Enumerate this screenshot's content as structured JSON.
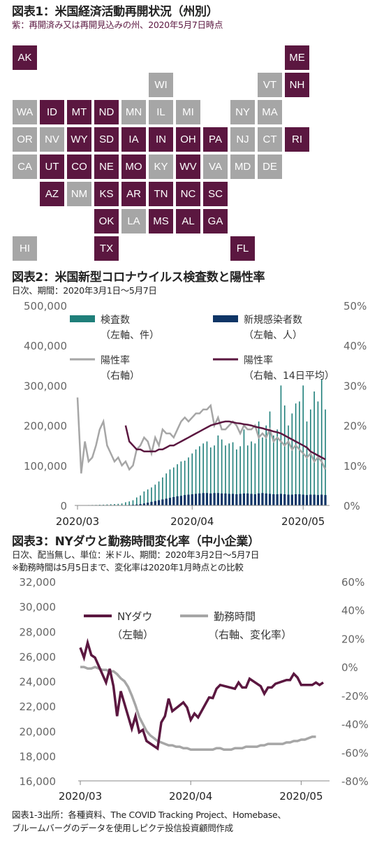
{
  "fig1": {
    "title": "図表1：米国経済活動再開状況（州別）",
    "subtitle": "紫：再開済み又は再開見込みの州、2020年5月7日時点",
    "colors": {
      "open": "#5b1740",
      "closed": "#a6a6a6"
    },
    "states": [
      {
        "code": "AK",
        "row": 0,
        "col": 0,
        "status": "open"
      },
      {
        "code": "ME",
        "row": 0,
        "col": 10,
        "status": "open"
      },
      {
        "code": "WI",
        "row": 1,
        "col": 5,
        "status": "closed"
      },
      {
        "code": "VT",
        "row": 1,
        "col": 9,
        "status": "closed"
      },
      {
        "code": "NH",
        "row": 1,
        "col": 10,
        "status": "open"
      },
      {
        "code": "WA",
        "row": 2,
        "col": 0,
        "status": "closed"
      },
      {
        "code": "ID",
        "row": 2,
        "col": 1,
        "status": "open"
      },
      {
        "code": "MT",
        "row": 2,
        "col": 2,
        "status": "open"
      },
      {
        "code": "ND",
        "row": 2,
        "col": 3,
        "status": "open"
      },
      {
        "code": "MN",
        "row": 2,
        "col": 4,
        "status": "closed"
      },
      {
        "code": "IL",
        "row": 2,
        "col": 5,
        "status": "closed"
      },
      {
        "code": "MI",
        "row": 2,
        "col": 6,
        "status": "closed"
      },
      {
        "code": "NY",
        "row": 2,
        "col": 8,
        "status": "closed"
      },
      {
        "code": "MA",
        "row": 2,
        "col": 9,
        "status": "closed"
      },
      {
        "code": "OR",
        "row": 3,
        "col": 0,
        "status": "closed"
      },
      {
        "code": "NV",
        "row": 3,
        "col": 1,
        "status": "closed"
      },
      {
        "code": "WY",
        "row": 3,
        "col": 2,
        "status": "open"
      },
      {
        "code": "SD",
        "row": 3,
        "col": 3,
        "status": "open"
      },
      {
        "code": "IA",
        "row": 3,
        "col": 4,
        "status": "open"
      },
      {
        "code": "IN",
        "row": 3,
        "col": 5,
        "status": "open"
      },
      {
        "code": "OH",
        "row": 3,
        "col": 6,
        "status": "open"
      },
      {
        "code": "PA",
        "row": 3,
        "col": 7,
        "status": "open"
      },
      {
        "code": "NJ",
        "row": 3,
        "col": 8,
        "status": "closed"
      },
      {
        "code": "CT",
        "row": 3,
        "col": 9,
        "status": "closed"
      },
      {
        "code": "RI",
        "row": 3,
        "col": 10,
        "status": "open"
      },
      {
        "code": "CA",
        "row": 4,
        "col": 0,
        "status": "closed"
      },
      {
        "code": "UT",
        "row": 4,
        "col": 1,
        "status": "open"
      },
      {
        "code": "CO",
        "row": 4,
        "col": 2,
        "status": "open"
      },
      {
        "code": "NE",
        "row": 4,
        "col": 3,
        "status": "open"
      },
      {
        "code": "MO",
        "row": 4,
        "col": 4,
        "status": "open"
      },
      {
        "code": "KY",
        "row": 4,
        "col": 5,
        "status": "closed"
      },
      {
        "code": "WV",
        "row": 4,
        "col": 6,
        "status": "open"
      },
      {
        "code": "VA",
        "row": 4,
        "col": 7,
        "status": "closed"
      },
      {
        "code": "MD",
        "row": 4,
        "col": 8,
        "status": "closed"
      },
      {
        "code": "DE",
        "row": 4,
        "col": 9,
        "status": "closed"
      },
      {
        "code": "AZ",
        "row": 5,
        "col": 1,
        "status": "open"
      },
      {
        "code": "NM",
        "row": 5,
        "col": 2,
        "status": "closed"
      },
      {
        "code": "KS",
        "row": 5,
        "col": 3,
        "status": "open"
      },
      {
        "code": "AR",
        "row": 5,
        "col": 4,
        "status": "open"
      },
      {
        "code": "TN",
        "row": 5,
        "col": 5,
        "status": "open"
      },
      {
        "code": "NC",
        "row": 5,
        "col": 6,
        "status": "open"
      },
      {
        "code": "SC",
        "row": 5,
        "col": 7,
        "status": "open"
      },
      {
        "code": "OK",
        "row": 6,
        "col": 3,
        "status": "open"
      },
      {
        "code": "LA",
        "row": 6,
        "col": 4,
        "status": "closed"
      },
      {
        "code": "MS",
        "row": 6,
        "col": 5,
        "status": "open"
      },
      {
        "code": "AL",
        "row": 6,
        "col": 6,
        "status": "open"
      },
      {
        "code": "GA",
        "row": 6,
        "col": 7,
        "status": "open"
      },
      {
        "code": "HI",
        "row": 7,
        "col": 0,
        "status": "closed"
      },
      {
        "code": "TX",
        "row": 7,
        "col": 3,
        "status": "open"
      },
      {
        "code": "FL",
        "row": 7,
        "col": 8,
        "status": "open"
      }
    ]
  },
  "fig2": {
    "title": "図表2：米国新型コロナウイルス検査数と陽性率",
    "subtitle": "日次、期間：2020年3月1日～5月7日"
  },
  "fig3": {
    "title": "図表3：NYダウと勤務時間変化率（中小企業）",
    "subtitle1": "日次、配当無し、単位：米ドル、期間：2020年3月2日～5月7日",
    "subtitle2": "※勤務時間は5月5日まで、変化率は2020年1月時点との比較"
  },
  "footer": {
    "line1": "図表1-3出所：各種資料、The COVID Tracking Project、Homebase、",
    "line2": "ブルームバーグのデータを使用しピクテ投信投資顧問作成"
  },
  "chart_data": [
    {
      "type": "bar",
      "x_axis": {
        "start": "2020-03-01",
        "end": "2020-05-07",
        "tick_labels": [
          "2020/03",
          "2020/04",
          "2020/05"
        ],
        "tick_dates": [
          "2020-03-01",
          "2020-04-01",
          "2020-05-01"
        ]
      },
      "y_left": {
        "min": 0,
        "max": 500000,
        "step": 100000,
        "tick_labels": [
          "0",
          "100,000",
          "200,000",
          "300,000",
          "400,000",
          "500,000"
        ]
      },
      "y_right": {
        "min": 0,
        "max": 50,
        "step": 10,
        "tick_labels": [
          "0%",
          "10%",
          "20%",
          "30%",
          "40%",
          "50%"
        ]
      },
      "legend": [
        {
          "name": "検査数",
          "note": "（左軸、件）",
          "kind": "bar",
          "color": "#1f7f7a"
        },
        {
          "name": "新規感染者数",
          "note": "（左軸、人）",
          "kind": "bar",
          "color": "#0f3566"
        },
        {
          "name": "陽性率",
          "note": "（右軸）",
          "kind": "line",
          "color": "#a6a6a6"
        },
        {
          "name": "陽性率",
          "note": "（右軸、14日平均）",
          "kind": "line",
          "color": "#5b1740"
        }
      ],
      "tests": [
        500,
        500,
        800,
        1000,
        1200,
        1400,
        1800,
        2000,
        2500,
        3000,
        3500,
        4000,
        5000,
        8000,
        10000,
        13000,
        20000,
        25000,
        35000,
        40000,
        45000,
        52000,
        60000,
        70000,
        80000,
        90000,
        95000,
        103000,
        110000,
        112000,
        120000,
        130000,
        140000,
        148000,
        155000,
        160000,
        145000,
        150000,
        175000,
        165000,
        150000,
        155000,
        158000,
        140000,
        148000,
        190000,
        150000,
        160000,
        155000,
        210000,
        170000,
        200000,
        235000,
        175000,
        190000,
        300000,
        250000,
        200000,
        230000,
        255000,
        260000,
        300000,
        210000,
        240000,
        285000,
        260000,
        315000,
        240000
      ],
      "new_cases": [
        5,
        5,
        10,
        15,
        20,
        30,
        50,
        80,
        100,
        150,
        200,
        300,
        500,
        800,
        1200,
        1800,
        2500,
        3500,
        5000,
        7000,
        9000,
        11000,
        13000,
        15000,
        17000,
        19000,
        21000,
        23000,
        24000,
        26000,
        27000,
        28000,
        29000,
        30000,
        31000,
        31000,
        30000,
        31000,
        31000,
        30000,
        30000,
        29000,
        29000,
        28000,
        29000,
        30000,
        30000,
        29000,
        28000,
        30000,
        31000,
        30000,
        29000,
        28000,
        28000,
        29000,
        28000,
        27000,
        27000,
        28000,
        28000,
        27000,
        26000,
        27000,
        27000,
        26000,
        27000,
        26000
      ],
      "positivity": [
        27,
        8,
        16,
        11,
        12,
        15,
        19,
        21,
        15,
        13,
        11,
        12,
        10,
        11,
        9,
        10,
        14,
        15,
        17,
        16,
        13,
        17,
        15,
        19,
        18,
        18,
        17,
        19,
        21,
        22,
        21,
        22,
        23,
        23,
        24,
        24,
        25,
        20,
        22,
        19,
        19,
        20,
        21,
        20,
        18,
        20,
        19,
        19,
        20,
        17,
        18,
        17,
        19,
        16,
        17,
        16,
        15,
        16,
        14,
        15,
        14,
        13,
        12,
        13,
        11,
        12,
        11,
        9
      ],
      "positivity_14d": [
        null,
        null,
        null,
        null,
        null,
        null,
        null,
        null,
        null,
        null,
        null,
        null,
        null,
        20,
        16,
        15,
        14,
        14,
        13.5,
        13.5,
        13.5,
        13.5,
        14,
        14,
        14.5,
        15,
        15,
        15.5,
        16,
        16.5,
        17,
        17.5,
        18,
        18.5,
        19,
        19.5,
        20,
        20.3,
        20.5,
        20.8,
        21,
        21,
        20.8,
        20.6,
        20.5,
        20.3,
        20.2,
        20,
        19.7,
        19.5,
        19.3,
        19,
        18.8,
        18.5,
        18.3,
        18,
        17.5,
        17,
        16.5,
        16,
        15.5,
        15,
        14.5,
        13.5,
        13,
        12.5,
        12,
        11.5
      ]
    },
    {
      "type": "line",
      "x_axis": {
        "start": "2020-03-02",
        "end": "2020-05-07",
        "tick_labels": [
          "2020/03",
          "2020/04",
          "2020/05"
        ],
        "tick_dates": [
          "2020-03-02",
          "2020-04-01",
          "2020-05-01"
        ]
      },
      "y_left": {
        "min": 16000,
        "max": 32000,
        "step": 2000,
        "tick_labels": [
          "16,000",
          "18,000",
          "20,000",
          "22,000",
          "24,000",
          "26,000",
          "28,000",
          "30,000",
          "32,000"
        ]
      },
      "y_right": {
        "min": -80,
        "max": 60,
        "step": 20,
        "tick_labels": [
          "-80%",
          "-60%",
          "-40%",
          "-20%",
          "0%",
          "20%",
          "40%",
          "60%"
        ]
      },
      "legend": [
        {
          "name": "NYダウ",
          "note": "（左軸）",
          "color": "#5b1740"
        },
        {
          "name": "勤務時間",
          "note": "（右軸、変化率）",
          "color": "#a6a6a6"
        }
      ],
      "dow": [
        {
          "x": "2020-03-02",
          "y": 26700
        },
        {
          "x": "2020-03-03",
          "y": 25900
        },
        {
          "x": "2020-03-04",
          "y": 27100
        },
        {
          "x": "2020-03-05",
          "y": 26100
        },
        {
          "x": "2020-03-06",
          "y": 25900
        },
        {
          "x": "2020-03-09",
          "y": 23900
        },
        {
          "x": "2020-03-10",
          "y": 25000
        },
        {
          "x": "2020-03-11",
          "y": 23600
        },
        {
          "x": "2020-03-12",
          "y": 21200
        },
        {
          "x": "2020-03-13",
          "y": 23200
        },
        {
          "x": "2020-03-16",
          "y": 20200
        },
        {
          "x": "2020-03-17",
          "y": 21200
        },
        {
          "x": "2020-03-18",
          "y": 19900
        },
        {
          "x": "2020-03-19",
          "y": 20100
        },
        {
          "x": "2020-03-20",
          "y": 19200
        },
        {
          "x": "2020-03-23",
          "y": 18600
        },
        {
          "x": "2020-03-24",
          "y": 20700
        },
        {
          "x": "2020-03-25",
          "y": 21200
        },
        {
          "x": "2020-03-26",
          "y": 22600
        },
        {
          "x": "2020-03-27",
          "y": 21600
        },
        {
          "x": "2020-03-30",
          "y": 22300
        },
        {
          "x": "2020-03-31",
          "y": 21900
        },
        {
          "x": "2020-04-01",
          "y": 20900
        },
        {
          "x": "2020-04-02",
          "y": 21400
        },
        {
          "x": "2020-04-03",
          "y": 21100
        },
        {
          "x": "2020-04-06",
          "y": 22700
        },
        {
          "x": "2020-04-07",
          "y": 22650
        },
        {
          "x": "2020-04-08",
          "y": 23400
        },
        {
          "x": "2020-04-09",
          "y": 23700
        },
        {
          "x": "2020-04-13",
          "y": 23400
        },
        {
          "x": "2020-04-14",
          "y": 23900
        },
        {
          "x": "2020-04-15",
          "y": 23500
        },
        {
          "x": "2020-04-16",
          "y": 23500
        },
        {
          "x": "2020-04-17",
          "y": 24200
        },
        {
          "x": "2020-04-20",
          "y": 23600
        },
        {
          "x": "2020-04-21",
          "y": 23000
        },
        {
          "x": "2020-04-22",
          "y": 23500
        },
        {
          "x": "2020-04-23",
          "y": 23500
        },
        {
          "x": "2020-04-24",
          "y": 23800
        },
        {
          "x": "2020-04-27",
          "y": 24100
        },
        {
          "x": "2020-04-28",
          "y": 24100
        },
        {
          "x": "2020-04-29",
          "y": 24600
        },
        {
          "x": "2020-04-30",
          "y": 24300
        },
        {
          "x": "2020-05-01",
          "y": 23700
        },
        {
          "x": "2020-05-04",
          "y": 23700
        },
        {
          "x": "2020-05-05",
          "y": 23900
        },
        {
          "x": "2020-05-06",
          "y": 23700
        },
        {
          "x": "2020-05-07",
          "y": 23900
        }
      ],
      "work_hours": [
        {
          "x": "2020-03-02",
          "y": 0
        },
        {
          "x": "2020-03-03",
          "y": 0
        },
        {
          "x": "2020-03-04",
          "y": -1
        },
        {
          "x": "2020-03-05",
          "y": -1
        },
        {
          "x": "2020-03-06",
          "y": 0
        },
        {
          "x": "2020-03-07",
          "y": -1
        },
        {
          "x": "2020-03-08",
          "y": -2
        },
        {
          "x": "2020-03-09",
          "y": -2
        },
        {
          "x": "2020-03-10",
          "y": -3
        },
        {
          "x": "2020-03-11",
          "y": -3
        },
        {
          "x": "2020-03-12",
          "y": -5
        },
        {
          "x": "2020-03-13",
          "y": -8
        },
        {
          "x": "2020-03-14",
          "y": -10
        },
        {
          "x": "2020-03-15",
          "y": -14
        },
        {
          "x": "2020-03-16",
          "y": -20
        },
        {
          "x": "2020-03-17",
          "y": -27
        },
        {
          "x": "2020-03-18",
          "y": -35
        },
        {
          "x": "2020-03-19",
          "y": -40
        },
        {
          "x": "2020-03-20",
          "y": -45
        },
        {
          "x": "2020-03-21",
          "y": -48
        },
        {
          "x": "2020-03-22",
          "y": -50
        },
        {
          "x": "2020-03-23",
          "y": -52
        },
        {
          "x": "2020-03-24",
          "y": -53
        },
        {
          "x": "2020-03-25",
          "y": -54
        },
        {
          "x": "2020-03-26",
          "y": -55
        },
        {
          "x": "2020-03-27",
          "y": -55
        },
        {
          "x": "2020-03-28",
          "y": -56
        },
        {
          "x": "2020-03-29",
          "y": -56
        },
        {
          "x": "2020-03-30",
          "y": -57
        },
        {
          "x": "2020-03-31",
          "y": -57
        },
        {
          "x": "2020-04-01",
          "y": -58
        },
        {
          "x": "2020-04-02",
          "y": -58
        },
        {
          "x": "2020-04-03",
          "y": -58
        },
        {
          "x": "2020-04-04",
          "y": -58
        },
        {
          "x": "2020-04-05",
          "y": -58
        },
        {
          "x": "2020-04-06",
          "y": -58
        },
        {
          "x": "2020-04-07",
          "y": -58
        },
        {
          "x": "2020-04-08",
          "y": -57
        },
        {
          "x": "2020-04-09",
          "y": -57
        },
        {
          "x": "2020-04-10",
          "y": -58
        },
        {
          "x": "2020-04-11",
          "y": -58
        },
        {
          "x": "2020-04-12",
          "y": -58
        },
        {
          "x": "2020-04-13",
          "y": -57
        },
        {
          "x": "2020-04-14",
          "y": -57
        },
        {
          "x": "2020-04-15",
          "y": -57
        },
        {
          "x": "2020-04-16",
          "y": -56
        },
        {
          "x": "2020-04-17",
          "y": -56
        },
        {
          "x": "2020-04-18",
          "y": -56
        },
        {
          "x": "2020-04-19",
          "y": -56
        },
        {
          "x": "2020-04-20",
          "y": -55
        },
        {
          "x": "2020-04-21",
          "y": -55
        },
        {
          "x": "2020-04-22",
          "y": -54
        },
        {
          "x": "2020-04-23",
          "y": -54
        },
        {
          "x": "2020-04-24",
          "y": -54
        },
        {
          "x": "2020-04-25",
          "y": -54
        },
        {
          "x": "2020-04-26",
          "y": -54
        },
        {
          "x": "2020-04-27",
          "y": -53
        },
        {
          "x": "2020-04-28",
          "y": -53
        },
        {
          "x": "2020-04-29",
          "y": -52
        },
        {
          "x": "2020-04-30",
          "y": -52
        },
        {
          "x": "2020-05-01",
          "y": -51
        },
        {
          "x": "2020-05-02",
          "y": -51
        },
        {
          "x": "2020-05-03",
          "y": -50
        },
        {
          "x": "2020-05-04",
          "y": -49
        },
        {
          "x": "2020-05-05",
          "y": -49
        }
      ]
    }
  ]
}
